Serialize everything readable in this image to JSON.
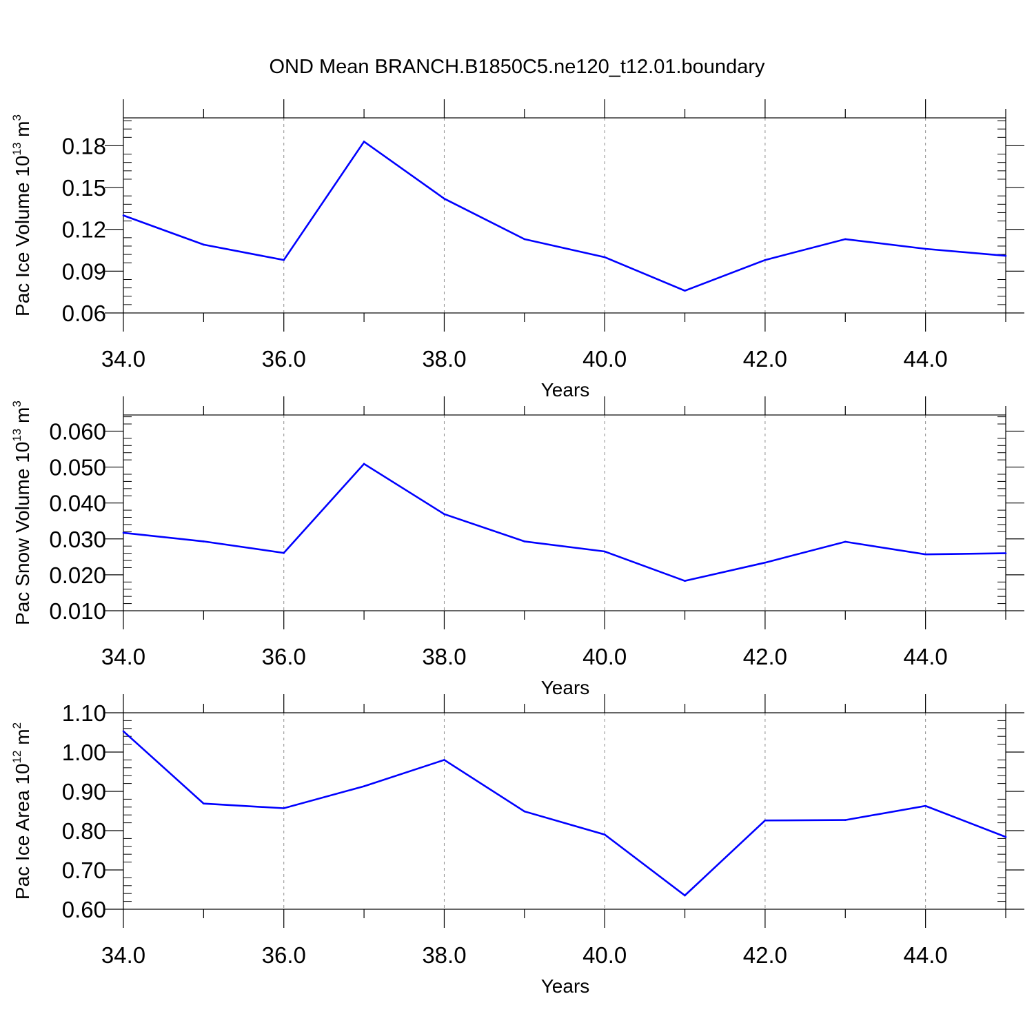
{
  "figure": {
    "title": "OND Mean BRANCH.B1850C5.ne120_t12.01.boundary"
  },
  "chart_data": [
    {
      "type": "line",
      "title": "",
      "xlabel": "Years",
      "ylabel": "Pac Ice Volume 10",
      "ylabel_exp": "13",
      "ylabel_unit": " m",
      "ylabel_unit_exp": "3",
      "xlim": [
        34,
        45
      ],
      "ylim": [
        0.06,
        0.2
      ],
      "x_ticks": [
        34,
        36,
        38,
        40,
        42,
        44
      ],
      "x_tick_labels": [
        "34.0",
        "36.0",
        "38.0",
        "40.0",
        "42.0",
        "44.0"
      ],
      "y_ticks": [
        0.06,
        0.09,
        0.12,
        0.15,
        0.18
      ],
      "y_tick_labels": [
        "0.06",
        "0.09",
        "0.12",
        "0.15",
        "0.18"
      ],
      "grid": "vertical dashed at major x ticks",
      "line_color": "#0000ff",
      "series": [
        {
          "x": [
            34,
            35,
            36,
            37,
            38,
            39,
            40,
            41,
            42,
            43,
            44,
            45
          ],
          "values": [
            0.13,
            0.109,
            0.098,
            0.183,
            0.142,
            0.113,
            0.1,
            0.076,
            0.098,
            0.113,
            0.106,
            0.101
          ]
        }
      ]
    },
    {
      "type": "line",
      "title": "",
      "xlabel": "Years",
      "ylabel": "Pac Snow Volume 10",
      "ylabel_exp": "13",
      "ylabel_unit": " m",
      "ylabel_unit_exp": "3",
      "xlim": [
        34,
        45
      ],
      "ylim": [
        0.01,
        0.0645
      ],
      "x_ticks": [
        34,
        36,
        38,
        40,
        42,
        44
      ],
      "x_tick_labels": [
        "34.0",
        "36.0",
        "38.0",
        "40.0",
        "42.0",
        "44.0"
      ],
      "y_ticks": [
        0.01,
        0.02,
        0.03,
        0.04,
        0.05,
        0.06
      ],
      "y_tick_labels": [
        "0.010",
        "0.020",
        "0.030",
        "0.040",
        "0.050",
        "0.060"
      ],
      "grid": "vertical dashed at major x ticks",
      "line_color": "#0000ff",
      "series": [
        {
          "x": [
            34,
            35,
            36,
            37,
            38,
            39,
            40,
            41,
            42,
            43,
            44,
            45
          ],
          "values": [
            0.0317,
            0.0293,
            0.0261,
            0.0509,
            0.0369,
            0.0293,
            0.0265,
            0.0183,
            0.0234,
            0.0292,
            0.0257,
            0.026
          ]
        }
      ]
    },
    {
      "type": "line",
      "title": "",
      "xlabel": "Years",
      "ylabel": "Pac Ice Area 10",
      "ylabel_exp": "12",
      "ylabel_unit": " m",
      "ylabel_unit_exp": "2",
      "xlim": [
        34,
        45
      ],
      "ylim": [
        0.6,
        1.1
      ],
      "x_ticks": [
        34,
        36,
        38,
        40,
        42,
        44
      ],
      "x_tick_labels": [
        "34.0",
        "36.0",
        "38.0",
        "40.0",
        "42.0",
        "44.0"
      ],
      "y_ticks": [
        0.6,
        0.7,
        0.8,
        0.9,
        1.0,
        1.1
      ],
      "y_tick_labels": [
        "0.60",
        "0.70",
        "0.80",
        "0.90",
        "1.00",
        "1.10"
      ],
      "grid": "vertical dashed at major x ticks",
      "line_color": "#0000ff",
      "series": [
        {
          "x": [
            34,
            35,
            36,
            37,
            38,
            39,
            40,
            41,
            42,
            43,
            44,
            45
          ],
          "values": [
            1.053,
            0.869,
            0.857,
            0.913,
            0.98,
            0.849,
            0.79,
            0.635,
            0.826,
            0.827,
            0.863,
            0.784
          ]
        }
      ]
    }
  ]
}
